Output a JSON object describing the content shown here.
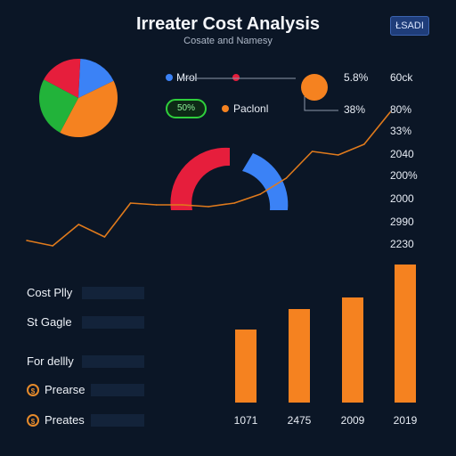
{
  "header": {
    "title": "Irreater Cost Analysis",
    "subtitle": "Cosate and Namesy",
    "badge": "ŁSADI"
  },
  "legend": {
    "items": [
      {
        "label": "Mrol",
        "color": "#3b82f6"
      },
      {
        "label": "Paclonl",
        "color": "#f58220"
      }
    ],
    "extra_dot_color": "#e61e3c",
    "pct_badge": "50%"
  },
  "right_labels": {
    "col1": [
      "5.8%",
      "38%"
    ],
    "col2": [
      "60ck",
      "80%",
      "33%",
      "2040",
      "200%",
      "2000",
      "2990",
      "2230"
    ]
  },
  "rows": [
    {
      "label": "Cost Plly",
      "icon": ""
    },
    {
      "label": "St Gagle",
      "icon": ""
    },
    {
      "label": "For dellly",
      "icon": ""
    },
    {
      "label": "Prearse",
      "icon": "coin-icon"
    },
    {
      "label": "Preates",
      "icon": "coin-icon"
    }
  ],
  "colors": {
    "red": "#e61e3c",
    "blue": "#3b82f6",
    "green": "#22b33a",
    "orange": "#f58220",
    "background": "#0b1626"
  },
  "chart_data": [
    {
      "type": "pie",
      "slices": [
        {
          "color": "#3b82f6",
          "value": 0.17
        },
        {
          "color": "#f58220",
          "value": 0.4
        },
        {
          "color": "#22b33a",
          "value": 0.25
        },
        {
          "color": "#e61e3c",
          "value": 0.18
        }
      ]
    },
    {
      "type": "line",
      "x": [
        0,
        1,
        2,
        3,
        4,
        5,
        6,
        7,
        8,
        9,
        10,
        11,
        12,
        13,
        14
      ],
      "values": [
        2.0,
        1.7,
        2.9,
        2.2,
        4.1,
        4.0,
        4.0,
        3.9,
        4.1,
        4.6,
        5.5,
        7.0,
        6.8,
        7.4,
        9.2
      ],
      "ylim": [
        0,
        10
      ]
    },
    {
      "type": "bar",
      "categories": [
        "1071",
        "2475",
        "2009",
        "2019"
      ],
      "values": [
        82,
        105,
        118,
        155
      ],
      "ylim": [
        0,
        160
      ]
    }
  ]
}
